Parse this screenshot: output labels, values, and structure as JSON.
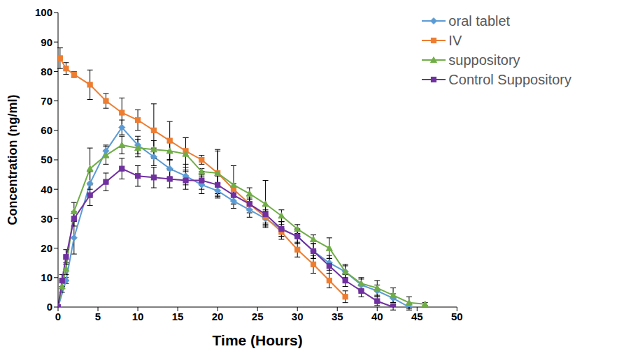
{
  "chart_data": {
    "type": "line",
    "x_label": "Time (Hours)",
    "y_label": "Concentration (ng/ml)",
    "xlim": [
      0,
      50
    ],
    "xticks": [
      0,
      5,
      10,
      15,
      20,
      25,
      30,
      35,
      40,
      45,
      50
    ],
    "ylim": [
      0,
      100
    ],
    "yticks": [
      0,
      10,
      20,
      30,
      40,
      50,
      60,
      70,
      80,
      90,
      100
    ],
    "grid": false,
    "legend": "upper right",
    "series": [
      {
        "name": "oral tablet",
        "color": "#5b9bd5",
        "marker": "diamond",
        "x": [
          0,
          1,
          2,
          4,
          6,
          8,
          10,
          12,
          14,
          16,
          18,
          20,
          22,
          24,
          26,
          28,
          30,
          32,
          34,
          36,
          38,
          40,
          42,
          44
        ],
        "values": [
          0,
          9,
          23.5,
          42,
          53,
          61,
          55,
          51,
          47,
          44.5,
          41.5,
          39.5,
          36,
          33,
          30,
          26.5,
          24,
          19,
          15,
          12,
          7.5,
          5.5,
          3,
          0
        ],
        "errors": [
          0,
          1,
          5.5,
          4,
          2,
          2.5,
          3,
          3,
          3,
          3,
          3,
          2.5,
          2.5,
          2.5,
          2.5,
          2.5,
          2.5,
          2.5,
          2.5,
          2.5,
          2,
          2,
          1.5,
          1
        ]
      },
      {
        "name": "IV",
        "color": "#ed7d31",
        "marker": "square",
        "x": [
          0.25,
          1,
          2,
          4,
          6,
          8,
          10,
          12,
          14,
          16,
          18,
          20,
          22,
          24,
          26,
          28,
          30,
          32,
          34,
          36
        ],
        "values": [
          84.5,
          81,
          79,
          75.5,
          70,
          66,
          63.5,
          60,
          56.5,
          53,
          50,
          45.5,
          40,
          35,
          30.5,
          25.5,
          19.5,
          14.5,
          9,
          3.5
        ],
        "errors": [
          3.5,
          2,
          1,
          5,
          2.5,
          5,
          3.5,
          9,
          6.5,
          4.5,
          1.5,
          8,
          2,
          2,
          2.5,
          2.5,
          2.5,
          3,
          2.5,
          2
        ]
      },
      {
        "name": "suppository",
        "color": "#70ad47",
        "marker": "triangle",
        "x": [
          0,
          0.5,
          1,
          2,
          4,
          6,
          8,
          10,
          12,
          14,
          16,
          18,
          20,
          22,
          24,
          26,
          28,
          30,
          32,
          34,
          36,
          38,
          40,
          42,
          44,
          46
        ],
        "values": [
          0,
          7,
          13,
          32.5,
          47,
          51.5,
          55,
          54,
          53.5,
          53,
          52,
          46,
          45.5,
          41.5,
          38.5,
          35,
          31,
          26.5,
          23,
          20,
          12,
          8,
          6.5,
          4,
          1.5,
          1
        ],
        "errors": [
          0,
          2,
          2,
          3,
          7,
          3,
          3,
          3,
          3,
          3,
          5.5,
          1,
          7.5,
          6.5,
          2,
          8,
          2,
          1.5,
          1.5,
          3.5,
          2,
          2,
          2.5,
          2.5,
          2,
          0.5
        ]
      },
      {
        "name": "Control Suppository",
        "color": "#7030a0",
        "marker": "square",
        "x": [
          0,
          0.5,
          1,
          2,
          4,
          6,
          8,
          10,
          12,
          14,
          16,
          18,
          20,
          22,
          24,
          26,
          28,
          30,
          32,
          34,
          36,
          38,
          40,
          42
        ],
        "values": [
          0,
          9,
          17,
          30,
          38,
          42.5,
          47,
          44.5,
          44,
          43.5,
          43,
          43,
          41.5,
          38,
          35,
          31.5,
          26.5,
          24,
          19,
          14,
          9,
          5.5,
          2,
          0
        ],
        "errors": [
          0,
          2,
          2.5,
          2.5,
          3.5,
          3,
          3.5,
          3.5,
          3.5,
          3,
          3,
          3,
          3,
          3,
          3,
          3,
          2.5,
          2.5,
          2.5,
          2.5,
          2,
          2,
          1.5,
          1
        ]
      }
    ]
  }
}
